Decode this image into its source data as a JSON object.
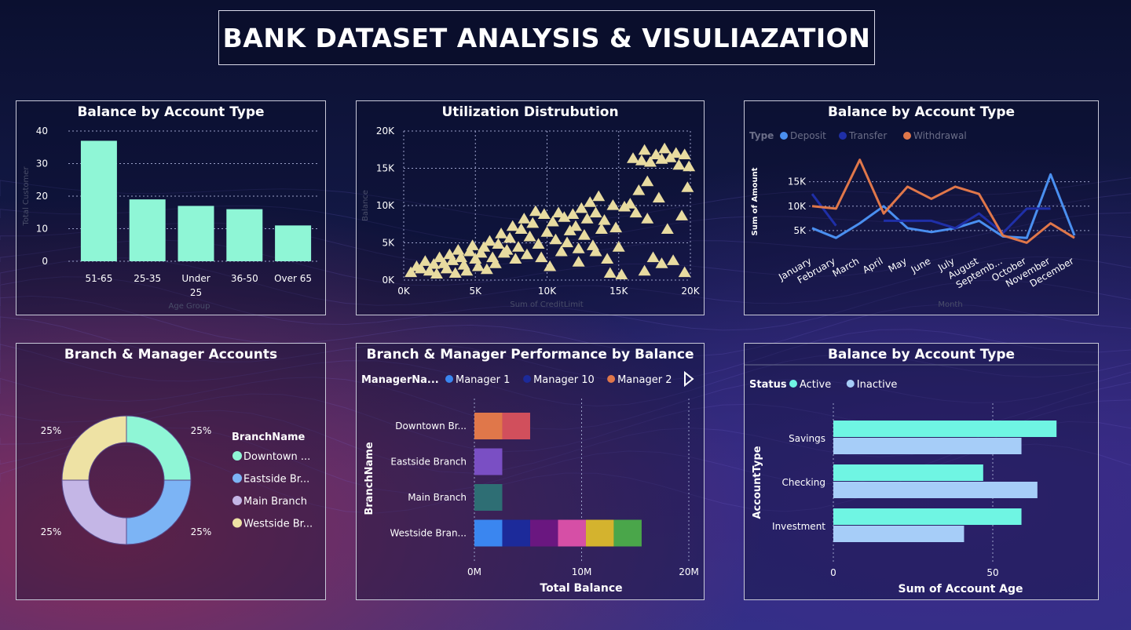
{
  "header": {
    "title": "BANK DATASET ANALYSIS & VISULIAZATION"
  },
  "panels": {
    "p1": {
      "title": "Balance by Account Type",
      "ylabel": "Total Customer",
      "xlabel": "Age Group"
    },
    "p2": {
      "title": "Utilization Distrubution",
      "ylabel": "Balance",
      "xlabel": "Sum of CreditLimit"
    },
    "p3": {
      "title": "Balance by Account Type",
      "legend_title": "Type",
      "ylabel": "Sum of Amount",
      "xlabel": "Month"
    },
    "p4": {
      "title": "Branch & Manager Accounts",
      "legend_title": "BranchName"
    },
    "p5": {
      "title": "Branch & Manager Performance by Balance",
      "legend_title": "ManagerNa...",
      "ylabel": "BranchName",
      "xlabel": "Total Balance"
    },
    "p6": {
      "title": "Balance by Account Type",
      "legend_title": "Status",
      "ylabel": "AccountType",
      "xlabel": "Sum of Account Age"
    }
  },
  "colors": {
    "bar": "#8ff6d6",
    "scatter": "#e8dba0",
    "deposit": "#4a8ff0",
    "transfer": "#1f2fa8",
    "withdrawal": "#e0774a",
    "active": "#6ff5e3",
    "inactive": "#a6cdf8"
  },
  "chart_data": [
    {
      "type": "bar",
      "title": "Balance by Account Type",
      "xlabel": "Age Group",
      "ylabel": "Total Customer",
      "categories": [
        "51-65",
        "25-35",
        "Under 25",
        "36-50",
        "Over 65"
      ],
      "values": [
        37,
        19,
        17,
        16,
        11
      ],
      "ylim": [
        0,
        40
      ],
      "yticks": [
        0,
        10,
        20,
        30,
        40
      ],
      "grid": true
    },
    {
      "type": "scatter",
      "title": "Utilization Distrubution",
      "xlabel": "Sum of CreditLimit",
      "ylabel": "Balance",
      "xlim": [
        0,
        20000
      ],
      "ylim": [
        0,
        20000
      ],
      "xticks": [
        "0K",
        "5K",
        "10K",
        "15K",
        "20K"
      ],
      "yticks": [
        "0K",
        "5K",
        "10K",
        "15K",
        "20K"
      ],
      "marker": "triangle",
      "points": [
        [
          500,
          1000
        ],
        [
          900,
          1800
        ],
        [
          1200,
          1500
        ],
        [
          1500,
          2500
        ],
        [
          1800,
          1200
        ],
        [
          2100,
          2100
        ],
        [
          2300,
          800
        ],
        [
          2500,
          3000
        ],
        [
          2800,
          2200
        ],
        [
          3000,
          1500
        ],
        [
          3200,
          3400
        ],
        [
          3400,
          2600
        ],
        [
          3600,
          900
        ],
        [
          3800,
          4000
        ],
        [
          4000,
          3000
        ],
        [
          4200,
          2000
        ],
        [
          4400,
          1200
        ],
        [
          4600,
          3800
        ],
        [
          4800,
          4600
        ],
        [
          5000,
          2800
        ],
        [
          5200,
          1800
        ],
        [
          5400,
          3600
        ],
        [
          5600,
          4400
        ],
        [
          5800,
          1400
        ],
        [
          6000,
          5200
        ],
        [
          6200,
          3000
        ],
        [
          6400,
          2200
        ],
        [
          6600,
          4800
        ],
        [
          6800,
          6200
        ],
        [
          7000,
          3600
        ],
        [
          7200,
          4000
        ],
        [
          7400,
          5600
        ],
        [
          7600,
          7200
        ],
        [
          7800,
          2800
        ],
        [
          8000,
          4400
        ],
        [
          8200,
          6800
        ],
        [
          8400,
          8200
        ],
        [
          8600,
          3400
        ],
        [
          8800,
          5800
        ],
        [
          9000,
          7600
        ],
        [
          9200,
          9200
        ],
        [
          9400,
          4800
        ],
        [
          9600,
          3000
        ],
        [
          9800,
          8800
        ],
        [
          10000,
          6400
        ],
        [
          10200,
          1800
        ],
        [
          10400,
          7800
        ],
        [
          10600,
          5400
        ],
        [
          10800,
          9000
        ],
        [
          11000,
          3800
        ],
        [
          11200,
          8400
        ],
        [
          11400,
          5000
        ],
        [
          11600,
          6600
        ],
        [
          11800,
          8800
        ],
        [
          12000,
          7200
        ],
        [
          12200,
          4200
        ],
        [
          12400,
          9600
        ],
        [
          12600,
          6000
        ],
        [
          12800,
          8200
        ],
        [
          13000,
          10400
        ],
        [
          13200,
          4600
        ],
        [
          13400,
          9000
        ],
        [
          13600,
          11200
        ],
        [
          13800,
          6800
        ],
        [
          14000,
          8000
        ],
        [
          14200,
          2800
        ],
        [
          14400,
          900
        ],
        [
          14600,
          10000
        ],
        [
          15000,
          4400
        ],
        [
          15400,
          9800
        ],
        [
          15800,
          10200
        ],
        [
          16000,
          16300
        ],
        [
          16200,
          9000
        ],
        [
          16400,
          12000
        ],
        [
          16600,
          16000
        ],
        [
          16800,
          17400
        ],
        [
          17000,
          8200
        ],
        [
          17200,
          15800
        ],
        [
          17400,
          3000
        ],
        [
          17600,
          16800
        ],
        [
          17800,
          11000
        ],
        [
          18000,
          16200
        ],
        [
          18200,
          17600
        ],
        [
          18400,
          6800
        ],
        [
          18600,
          16400
        ],
        [
          18800,
          2600
        ],
        [
          19000,
          17000
        ],
        [
          19200,
          15400
        ],
        [
          19400,
          8600
        ],
        [
          19600,
          16800
        ],
        [
          19800,
          12400
        ],
        [
          19900,
          15200
        ],
        [
          18000,
          2200
        ],
        [
          16800,
          1200
        ],
        [
          15200,
          700
        ],
        [
          19600,
          1000
        ],
        [
          17000,
          13200
        ],
        [
          14800,
          7000
        ],
        [
          13400,
          3800
        ],
        [
          12200,
          2400
        ]
      ]
    },
    {
      "type": "line",
      "title": "Balance by Account Type",
      "xlabel": "Month",
      "ylabel": "Sum of Amount",
      "categories": [
        "January",
        "February",
        "March",
        "April",
        "May",
        "June",
        "July",
        "August",
        "Septemb...",
        "October",
        "November",
        "December"
      ],
      "yticks": [
        "5K",
        "10K",
        "15K"
      ],
      "ylim": [
        0,
        18000
      ],
      "series": [
        {
          "name": "Deposit",
          "values": [
            5500,
            3500,
            6500,
            10000,
            5500,
            4700,
            5500,
            7000,
            3800,
            3500,
            16500,
            4000
          ]
        },
        {
          "name": "Transfer",
          "values": [
            12500,
            6000,
            null,
            7000,
            7000,
            7000,
            5500,
            8500,
            4500,
            9500,
            9500,
            null
          ]
        },
        {
          "name": "Withdrawal",
          "values": [
            10000,
            9500,
            19500,
            8500,
            14000,
            11500,
            14000,
            12500,
            4000,
            2500,
            6500,
            3500
          ]
        }
      ]
    },
    {
      "type": "pie",
      "title": "Branch & Manager Accounts",
      "labels": [
        "Downtown ...",
        "Eastside Br...",
        "Main Branch",
        "Westside Br..."
      ],
      "values": [
        25,
        25,
        25,
        25
      ],
      "data_labels": [
        "25%",
        "25%",
        "25%",
        "25%"
      ],
      "colors": [
        "#8ff6d6",
        "#7cb4f5",
        "#c4b6e6",
        "#eee2a4"
      ]
    },
    {
      "type": "bar",
      "orientation": "horizontal",
      "stacked": true,
      "title": "Branch & Manager Performance by Balance",
      "xlabel": "Total Balance",
      "ylabel": "BranchName",
      "categories": [
        "Downtown Br...",
        "Eastside Branch",
        "Main Branch",
        "Westside Bran..."
      ],
      "xticks": [
        "0M",
        "10M",
        "20M"
      ],
      "xlim": [
        0,
        20
      ],
      "legend": [
        "Manager 1",
        "Manager 10",
        "Manager 2"
      ],
      "segments": [
        [
          {
            "value": 2.6,
            "color": "#e0774a"
          },
          {
            "value": 2.6,
            "color": "#d14f5c"
          }
        ],
        [
          {
            "value": 2.6,
            "color": "#7a4fc4"
          }
        ],
        [
          {
            "value": 2.6,
            "color": "#2e6e74"
          }
        ],
        [
          {
            "value": 2.6,
            "color": "#3a86f0"
          },
          {
            "value": 2.6,
            "color": "#1c2a9a"
          },
          {
            "value": 2.6,
            "color": "#6a1780"
          },
          {
            "value": 2.6,
            "color": "#d64fa6"
          },
          {
            "value": 2.6,
            "color": "#d4b32e"
          },
          {
            "value": 2.6,
            "color": "#4aa64a"
          }
        ]
      ]
    },
    {
      "type": "bar",
      "orientation": "horizontal",
      "title": "Balance by Account Type",
      "xlabel": "Sum of Account Age",
      "ylabel": "AccountType",
      "categories": [
        "Savings",
        "Checking",
        "Investment"
      ],
      "xticks": [
        "0",
        "50"
      ],
      "xlim": [
        0,
        68
      ],
      "series": [
        {
          "name": "Active",
          "values": [
            70,
            47,
            59
          ]
        },
        {
          "name": "Inactive",
          "values": [
            59,
            64,
            41
          ]
        }
      ]
    }
  ]
}
